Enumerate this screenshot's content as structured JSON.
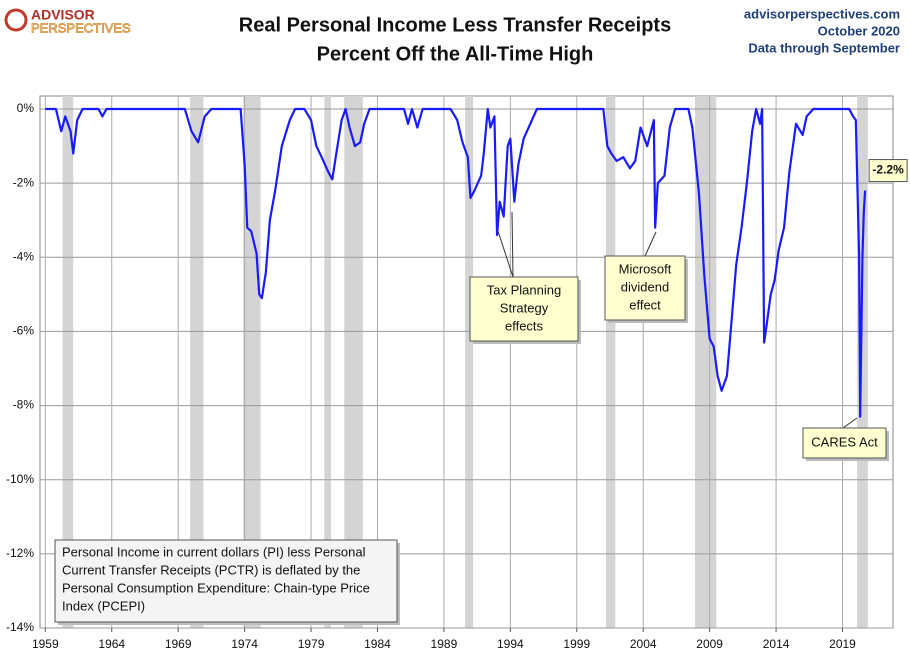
{
  "chart_data": {
    "type": "line",
    "logo": [
      "ADVISOR",
      "PERSPECTIVES"
    ],
    "title": [
      "Real Personal Income Less Transfer Receipts",
      "Percent Off the All-Time High"
    ],
    "source": [
      "advisorperspectives.com",
      "October 2020",
      "Data through September"
    ],
    "color": "#1a1aff",
    "x": [
      1959.0,
      1959.8,
      1960.2,
      1960.5,
      1960.9,
      1961.1,
      1961.4,
      1961.8,
      1963.0,
      1963.3,
      1963.6,
      1969.5,
      1970.0,
      1970.5,
      1971.0,
      1971.5,
      1973.7,
      1974.0,
      1974.2,
      1974.5,
      1974.9,
      1975.1,
      1975.3,
      1975.6,
      1975.9,
      1976.3,
      1976.8,
      1977.4,
      1977.8,
      1978.5,
      1979.0,
      1979.4,
      1979.8,
      1980.3,
      1980.6,
      1980.9,
      1981.3,
      1981.6,
      1981.9,
      1982.3,
      1982.7,
      1983.0,
      1983.4,
      1986.0,
      1986.3,
      1986.6,
      1987.0,
      1987.4,
      1989.5,
      1990.0,
      1990.4,
      1990.8,
      1991.0,
      1991.3,
      1991.8,
      1992.0,
      1992.3,
      1992.5,
      1992.8,
      1993.0,
      1993.2,
      1993.5,
      1993.8,
      1994.0,
      1994.3,
      1994.6,
      1995.0,
      1995.5,
      1996.0,
      2001.0,
      2001.3,
      2001.6,
      2002.0,
      2002.5,
      2003.0,
      2003.4,
      2003.8,
      2004.3,
      2004.8,
      2004.9,
      2005.1,
      2005.6,
      2006.0,
      2006.4,
      2007.4,
      2007.7,
      2008.2,
      2008.6,
      2009.0,
      2009.3,
      2009.6,
      2009.9,
      2010.3,
      2010.7,
      2011.0,
      2011.4,
      2011.8,
      2012.2,
      2012.5,
      2012.8,
      2012.95,
      2013.1,
      2013.3,
      2013.6,
      2013.9,
      2014.2,
      2014.6,
      2015.0,
      2015.5,
      2016.0,
      2016.3,
      2016.8,
      2019.5,
      2019.8,
      2020.0,
      2020.25,
      2020.33,
      2020.5,
      2020.6,
      2020.7
    ],
    "values": [
      0,
      0,
      -0.6,
      -0.2,
      -0.6,
      -1.2,
      -0.3,
      0,
      0,
      -0.2,
      0,
      0,
      -0.6,
      -0.9,
      -0.2,
      0,
      0,
      -1.5,
      -3.2,
      -3.3,
      -3.9,
      -5.0,
      -5.1,
      -4.4,
      -3.0,
      -2.2,
      -1.0,
      -0.3,
      0,
      0,
      -0.3,
      -1.0,
      -1.3,
      -1.7,
      -1.9,
      -1.2,
      -0.3,
      0,
      -0.5,
      -1.0,
      -0.9,
      -0.4,
      0,
      0,
      -0.4,
      0,
      -0.5,
      0,
      0,
      -0.3,
      -0.9,
      -1.3,
      -2.4,
      -2.2,
      -1.8,
      -1.2,
      0,
      -0.5,
      -0.2,
      -3.4,
      -2.5,
      -2.9,
      -1.0,
      -0.8,
      -2.5,
      -1.5,
      -0.8,
      -0.4,
      0,
      0,
      -1.0,
      -1.2,
      -1.4,
      -1.3,
      -1.6,
      -1.4,
      -0.5,
      -1.0,
      -0.3,
      -3.2,
      -2.0,
      -1.8,
      -0.5,
      0,
      0,
      -0.5,
      -2.3,
      -4.5,
      -6.2,
      -6.4,
      -7.2,
      -7.6,
      -7.2,
      -5.5,
      -4.2,
      -3.2,
      -2.0,
      -0.6,
      0,
      -0.4,
      0,
      -6.3,
      -5.8,
      -5.0,
      -4.6,
      -3.8,
      -3.2,
      -1.7,
      -0.4,
      -0.7,
      -0.2,
      0,
      0,
      -0.2,
      -0.3,
      -4.0,
      -8.3,
      -4.0,
      -2.8,
      -2.2
    ],
    "value_labels": [
      null,
      null,
      null,
      null,
      null,
      null,
      null,
      null,
      null,
      null,
      null,
      null,
      null,
      null,
      null,
      null,
      null,
      null,
      null,
      null,
      null,
      null,
      null,
      null,
      null,
      null,
      null,
      null,
      null,
      null,
      null,
      null,
      null,
      null,
      null,
      null,
      null,
      null,
      null,
      null,
      null,
      null,
      null,
      null,
      null,
      null,
      null,
      null,
      null,
      null,
      null,
      null,
      null,
      null,
      null,
      null,
      null,
      null,
      null,
      null,
      null,
      null,
      null,
      null,
      null,
      null,
      null,
      null,
      null,
      null,
      null,
      null,
      null,
      null,
      null,
      null,
      null,
      null,
      null,
      null,
      null,
      null,
      null,
      null,
      null,
      null,
      null,
      null,
      null,
      null,
      null,
      null,
      null,
      null,
      null,
      null,
      null,
      null,
      null,
      null,
      null,
      null,
      null,
      null,
      null,
      null,
      null,
      null,
      null,
      null,
      null,
      null,
      null,
      null,
      null,
      null,
      null,
      null,
      null,
      "-2.2%"
    ],
    "recessions": [
      [
        1960.3,
        1961.1
      ],
      [
        1969.9,
        1970.9
      ],
      [
        1973.9,
        1975.2
      ],
      [
        1980.0,
        1980.5
      ],
      [
        1981.5,
        1982.9
      ],
      [
        1990.6,
        1991.2
      ],
      [
        2001.2,
        2001.9
      ],
      [
        2007.9,
        2009.5
      ],
      [
        2020.1,
        2020.9
      ]
    ],
    "xlim": [
      1958.6,
      2022.8
    ],
    "xticks": [
      1959,
      1964,
      1969,
      1974,
      1979,
      1984,
      1989,
      1994,
      1999,
      2004,
      2009,
      2014,
      2019
    ],
    "ylim": [
      -14,
      0
    ],
    "yticks": [
      {
        "value": 0,
        "label": "0%"
      },
      {
        "value": -2,
        "label": "-2%"
      },
      {
        "value": -4,
        "label": "-4%"
      },
      {
        "value": -6,
        "label": "-6%"
      },
      {
        "value": -8,
        "label": "-8%"
      },
      {
        "value": -10,
        "label": "-10%"
      },
      {
        "value": -12,
        "label": "-12%"
      },
      {
        "value": -14,
        "label": "-14%"
      }
    ],
    "grid": true,
    "annotations": [
      {
        "lines": [
          "Tax Planning",
          "Strategy",
          "effects"
        ]
      },
      {
        "lines": [
          "Microsoft",
          "dividend",
          "effect"
        ]
      },
      {
        "lines": [
          "CARES Act"
        ]
      }
    ],
    "note": [
      "Personal Income in current dollars  (PI) less Personal",
      "Current Transfer Receipts (PCTR) is deflated by the",
      "Personal Consumption Expenditure: Chain-type Price",
      "Index (PCEPI)"
    ]
  }
}
